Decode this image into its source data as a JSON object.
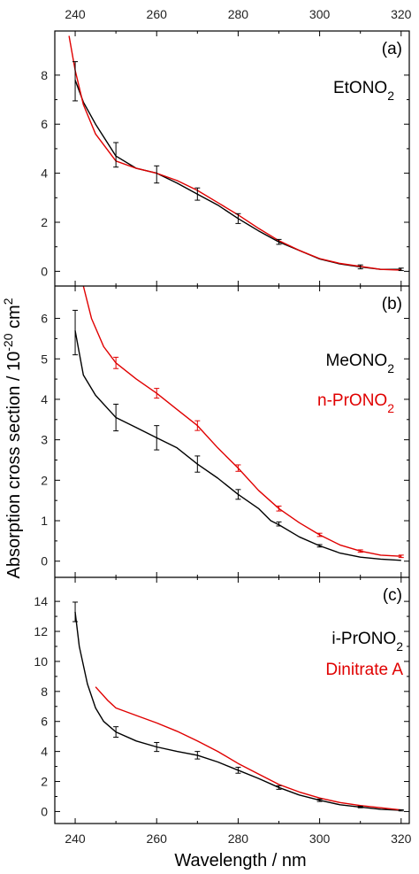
{
  "chart_data": {
    "type": "line",
    "xlabel": "Wavelength / nm",
    "ylabel": "Absorption cross section / 10",
    "ylabel_sup1": "-20",
    "ylabel_mid": " cm",
    "ylabel_sup2": "2",
    "xlim": [
      235,
      322
    ],
    "xticks": [
      240,
      260,
      280,
      300,
      320
    ],
    "panels": [
      {
        "letter": "(a)",
        "ylim": [
          -0.6,
          9.8
        ],
        "yticks": [
          0,
          2,
          4,
          6,
          8
        ],
        "labels": [
          {
            "base": "EtONO",
            "sub": "2",
            "color": "#000000"
          }
        ],
        "series": [
          {
            "color": "#000000",
            "x": [
              240,
              242,
              245,
              250,
              255,
              260,
              265,
              270,
              275,
              280,
              285,
              290,
              295,
              300,
              305,
              310,
              315,
              320
            ],
            "y": [
              7.8,
              6.9,
              6.0,
              4.7,
              4.2,
              4.0,
              3.6,
              3.15,
              2.7,
              2.15,
              1.65,
              1.2,
              0.85,
              0.5,
              0.3,
              0.18,
              0.08,
              0.08
            ]
          },
          {
            "color": "#e00000",
            "x": [
              238.5,
              240,
              242,
              245,
              250,
              255,
              260,
              265,
              270,
              275,
              280,
              285,
              290,
              295,
              300,
              305,
              310,
              315,
              320
            ],
            "y": [
              9.6,
              8.2,
              6.8,
              5.6,
              4.5,
              4.2,
              4.0,
              3.7,
              3.3,
              2.8,
              2.3,
              1.75,
              1.25,
              0.85,
              0.52,
              0.32,
              0.2,
              0.08,
              0.05
            ]
          }
        ],
        "errorbars": [
          {
            "color": "#000000",
            "x": [
              240,
              250,
              260,
              270,
              280,
              290,
              310,
              320
            ],
            "y": [
              7.75,
              4.75,
              3.95,
              3.15,
              2.15,
              1.2,
              0.18,
              0.08
            ],
            "err": [
              0.8,
              0.5,
              0.35,
              0.25,
              0.2,
              0.1,
              0.08,
              0.05
            ]
          }
        ]
      },
      {
        "letter": "(b)",
        "ylim": [
          -0.4,
          6.8
        ],
        "yticks": [
          0,
          1,
          2,
          3,
          4,
          5,
          6
        ],
        "labels": [
          {
            "base": "MeONO",
            "sub": "2",
            "color": "#000000"
          },
          {
            "base": "n-PrONO",
            "sub": "2",
            "color": "#e00000"
          }
        ],
        "series": [
          {
            "color": "#000000",
            "x": [
              240,
              242,
              245,
              250,
              255,
              260,
              265,
              270,
              275,
              280,
              285,
              288,
              290,
              295,
              300,
              305,
              310,
              315,
              320
            ],
            "y": [
              5.7,
              4.6,
              4.1,
              3.55,
              3.3,
              3.05,
              2.8,
              2.4,
              2.05,
              1.65,
              1.3,
              1.0,
              0.9,
              0.6,
              0.38,
              0.2,
              0.1,
              0.05,
              0.02
            ]
          },
          {
            "color": "#e00000",
            "x": [
              242,
              244,
              247,
              250,
              255,
              260,
              265,
              270,
              275,
              280,
              285,
              290,
              295,
              300,
              305,
              310,
              315,
              320
            ],
            "y": [
              6.8,
              6.0,
              5.3,
              4.9,
              4.5,
              4.15,
              3.75,
              3.35,
              2.8,
              2.3,
              1.75,
              1.3,
              0.95,
              0.65,
              0.4,
              0.25,
              0.15,
              0.12
            ]
          }
        ],
        "errorbars": [
          {
            "color": "#000000",
            "x": [
              240,
              250,
              260,
              270,
              280,
              290,
              300
            ],
            "y": [
              5.65,
              3.55,
              3.05,
              2.4,
              1.65,
              0.92,
              0.38
            ],
            "err": [
              0.55,
              0.33,
              0.3,
              0.2,
              0.12,
              0.05,
              0.03
            ]
          },
          {
            "color": "#e00000",
            "x": [
              250,
              260,
              270,
              280,
              290,
              300,
              310,
              320
            ],
            "y": [
              4.9,
              4.15,
              3.35,
              2.3,
              1.3,
              0.65,
              0.25,
              0.12
            ],
            "err": [
              0.14,
              0.12,
              0.12,
              0.08,
              0.06,
              0.04,
              0.03,
              0.03
            ]
          }
        ]
      },
      {
        "letter": "(c)",
        "ylim": [
          -0.8,
          15.6
        ],
        "yticks": [
          0,
          2,
          4,
          6,
          8,
          10,
          12,
          14
        ],
        "labels": [
          {
            "base": "i-PrONO",
            "sub": "2",
            "color": "#000000"
          },
          {
            "base": "Dinitrate A",
            "sub": "",
            "color": "#e00000"
          }
        ],
        "series": [
          {
            "color": "#000000",
            "x": [
              240,
              241,
              243,
              245,
              247,
              250,
              255,
              260,
              265,
              270,
              275,
              280,
              285,
              290,
              295,
              300,
              305,
              310,
              315,
              320
            ],
            "y": [
              13.3,
              11.0,
              8.5,
              6.9,
              6.0,
              5.3,
              4.7,
              4.3,
              4.0,
              3.75,
              3.3,
              2.75,
              2.2,
              1.6,
              1.1,
              0.75,
              0.45,
              0.3,
              0.15,
              0.08
            ]
          },
          {
            "color": "#e00000",
            "x": [
              245,
              248,
              250,
              255,
              260,
              265,
              270,
              275,
              280,
              285,
              290,
              295,
              300,
              305,
              310,
              315,
              320
            ],
            "y": [
              8.3,
              7.4,
              6.9,
              6.4,
              5.9,
              5.35,
              4.7,
              4.0,
              3.2,
              2.5,
              1.8,
              1.3,
              0.9,
              0.6,
              0.4,
              0.25,
              0.1
            ]
          }
        ],
        "errorbars": [
          {
            "color": "#000000",
            "x": [
              240,
              250,
              260,
              270,
              280,
              290,
              300,
              310,
              320
            ],
            "y": [
              13.3,
              5.3,
              4.3,
              3.75,
              2.75,
              1.6,
              0.75,
              0.3,
              0.08
            ],
            "err": [
              0.65,
              0.35,
              0.3,
              0.25,
              0.2,
              0.12,
              0.08,
              0.05,
              0.04
            ]
          }
        ]
      }
    ]
  }
}
